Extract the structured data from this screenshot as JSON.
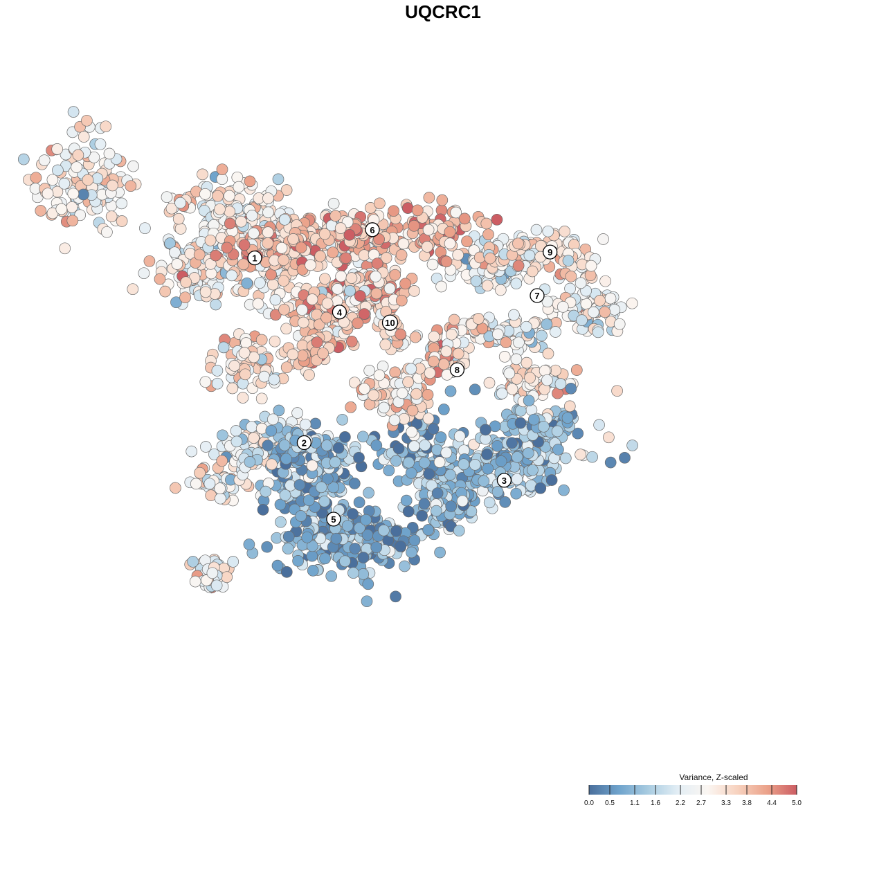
{
  "chart_data": {
    "type": "scatter",
    "title": "UQCRC1",
    "xlabel": "",
    "ylabel": "",
    "grid": false,
    "legend": {
      "title": "Variance, Z-scaled",
      "placement": "bottom-right",
      "range": [
        0.0,
        5.0
      ],
      "ticks": [
        "0.0",
        "0.5",
        "1.1",
        "1.6",
        "2.2",
        "2.7",
        "3.3",
        "3.8",
        "4.4",
        "5.0"
      ],
      "colors": [
        "#4a6f9c",
        "#6fa3cc",
        "#a9cce1",
        "#e3eef5",
        "#fbf6f2",
        "#f7d2bf",
        "#eba28a",
        "#cc5d63"
      ]
    },
    "clusters": [
      {
        "label": "1",
        "x": -16.0,
        "y": 8.2,
        "mean_value": 2.9
      },
      {
        "label": "2",
        "x": -11.8,
        "y": -7.5,
        "mean_value": 2.6
      },
      {
        "label": "3",
        "x": 5.2,
        "y": -10.7,
        "mean_value": 1.2
      },
      {
        "label": "4",
        "x": -8.8,
        "y": 3.6,
        "mean_value": 3.7
      },
      {
        "label": "5",
        "x": -9.3,
        "y": -14.0,
        "mean_value": 0.9
      },
      {
        "label": "6",
        "x": -6.0,
        "y": 10.6,
        "mean_value": 3.8
      },
      {
        "label": "7",
        "x": 8.0,
        "y": 5.0,
        "mean_value": 2.5
      },
      {
        "label": "8",
        "x": 1.2,
        "y": -1.3,
        "mean_value": 3.1
      },
      {
        "label": "9",
        "x": 9.1,
        "y": 8.7,
        "mean_value": 2.9
      },
      {
        "label": "10",
        "x": -4.5,
        "y": 2.7,
        "mean_value": 3.4
      }
    ]
  }
}
